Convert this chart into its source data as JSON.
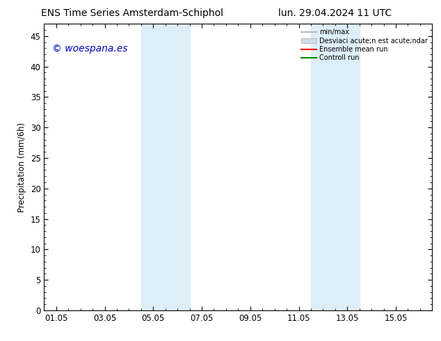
{
  "title_left": "ENS Time Series Amsterdam-Schiphol",
  "title_right": "lun. 29.04.2024 11 UTC",
  "ylabel": "Precipitation (mm/6h)",
  "watermark": "© woespana.es",
  "watermark_color": "#0000bb",
  "ylim": [
    0,
    47
  ],
  "yticks": [
    0,
    5,
    10,
    15,
    20,
    25,
    30,
    35,
    40,
    45
  ],
  "xtick_labels": [
    "01.05",
    "03.05",
    "05.05",
    "07.05",
    "09.05",
    "11.05",
    "13.05",
    "15.05"
  ],
  "xmin": -0.5,
  "xmax": 15.5,
  "shaded_bands": [
    [
      3.5,
      4.5
    ],
    [
      4.5,
      5.5
    ],
    [
      10.5,
      11.5
    ],
    [
      11.5,
      12.5
    ]
  ],
  "shaded_color": "#ddeef8",
  "background_color": "#ffffff",
  "legend_label_minmax": "min/max",
  "legend_label_std": "Desviaci acute;n est acute;ndar",
  "legend_label_ensemble": "Ensemble mean run",
  "legend_label_control": "Controll run",
  "color_minmax": "#aaaaaa",
  "color_std": "#ccdded",
  "color_ensemble": "#ff0000",
  "color_control": "#008800",
  "tick_color": "#000000",
  "axis_linewidth": 0.8
}
